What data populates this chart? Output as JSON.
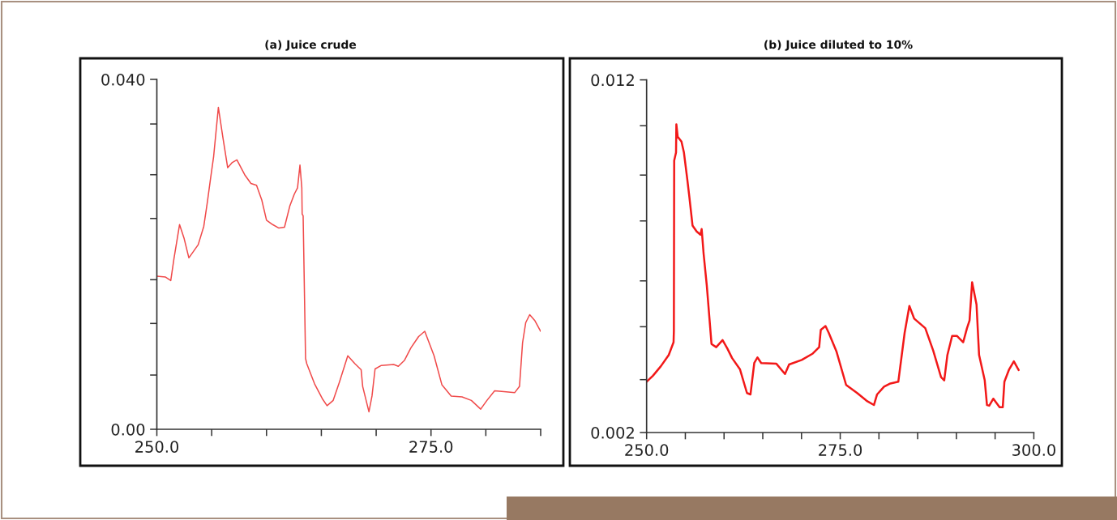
{
  "chart_data": [
    {
      "type": "line",
      "title": "(a) Juice crude",
      "color": "#f04a4a",
      "x": [
        250.0,
        250.79,
        251.27,
        251.56,
        252.07,
        252.49,
        252.92,
        253.77,
        254.28,
        254.61,
        254.9,
        255.18,
        255.61,
        256.03,
        256.46,
        256.88,
        257.3,
        258.01,
        258.58,
        259.09,
        259.57,
        260.0,
        260.56,
        261.13,
        261.64,
        262.12,
        262.54,
        262.83,
        263.05,
        263.22,
        263.25,
        263.34,
        263.56,
        263.67,
        264.38,
        265.09,
        265.52,
        266.08,
        266.65,
        267.41,
        268.06,
        268.63,
        268.77,
        269.34,
        269.62,
        269.9,
        270.47,
        271.6,
        272.02,
        272.59,
        273.16,
        273.87,
        274.43,
        275.28,
        275.99,
        276.84,
        277.83,
        278.68,
        279.53,
        280.1,
        280.8,
        281.65,
        282.64,
        283.07,
        283.35,
        283.64,
        284.0,
        284.48,
        285.0
      ],
      "values": [
        0.0175,
        0.0174,
        0.017,
        0.0195,
        0.0234,
        0.0218,
        0.0196,
        0.0211,
        0.0232,
        0.026,
        0.0287,
        0.0312,
        0.0368,
        0.0333,
        0.0299,
        0.0305,
        0.0308,
        0.0291,
        0.0281,
        0.0279,
        0.0262,
        0.0239,
        0.0234,
        0.023,
        0.0231,
        0.0255,
        0.0269,
        0.0276,
        0.0302,
        0.0276,
        0.0246,
        0.0244,
        0.0081,
        0.0075,
        0.0052,
        0.0035,
        0.0027,
        0.0033,
        0.0054,
        0.0084,
        0.0075,
        0.0068,
        0.0049,
        0.002,
        0.0038,
        0.0069,
        0.0073,
        0.0074,
        0.0072,
        0.0079,
        0.0093,
        0.0106,
        0.0112,
        0.0084,
        0.0051,
        0.0038,
        0.0037,
        0.0033,
        0.0023,
        0.0033,
        0.0044,
        0.0043,
        0.0042,
        0.0049,
        0.0099,
        0.0122,
        0.0131,
        0.0124,
        0.0112
      ],
      "xlim": [
        250,
        285
      ],
      "xticks": [
        {
          "value": 250,
          "label": "250.0"
        },
        {
          "value": 255,
          "label": null
        },
        {
          "value": 260,
          "label": null
        },
        {
          "value": 265,
          "label": null
        },
        {
          "value": 270,
          "label": null
        },
        {
          "value": 275,
          "label": "275.0"
        },
        {
          "value": 280,
          "label": null
        },
        {
          "value": 285,
          "label": null
        }
      ],
      "ylim": [
        0,
        0.04
      ],
      "yticks": [
        {
          "value": 0,
          "label": "0.00"
        },
        {
          "value": 0.0062,
          "label": null
        },
        {
          "value": 0.0121,
          "label": null
        },
        {
          "value": 0.0171,
          "label": null
        },
        {
          "value": 0.0241,
          "label": null
        },
        {
          "value": 0.0291,
          "label": null
        },
        {
          "value": 0.0349,
          "label": null
        },
        {
          "value": 0.04,
          "label": "0.040"
        }
      ]
    },
    {
      "type": "line",
      "title": "(b) Juice diluted to 10%",
      "color": "#f21818",
      "x": [
        250.0,
        250.82,
        251.84,
        252.86,
        253.48,
        253.52,
        253.56,
        253.8,
        253.84,
        254.01,
        254.5,
        254.82,
        255.23,
        255.52,
        255.93,
        256.46,
        256.95,
        257.11,
        257.36,
        257.77,
        258.38,
        258.99,
        259.81,
        260.43,
        261.04,
        262.06,
        262.96,
        263.41,
        263.9,
        264.31,
        264.8,
        266.76,
        267.87,
        268.4,
        270.03,
        271.46,
        272.28,
        272.49,
        273.1,
        273.51,
        274.53,
        275.76,
        277.19,
        278.41,
        279.35,
        279.76,
        280.66,
        281.48,
        282.5,
        283.32,
        283.93,
        284.55,
        285.98,
        287.0,
        288.02,
        288.43,
        288.84,
        289.45,
        290.06,
        290.88,
        291.37,
        291.7,
        292.03,
        292.6,
        292.93,
        293.66,
        293.95,
        294.24,
        294.77,
        295.58,
        295.99,
        296.2,
        296.81,
        297.42,
        298.04
      ],
      "values": [
        0.00344,
        0.00361,
        0.00388,
        0.0042,
        0.00456,
        0.00487,
        0.00971,
        0.00994,
        0.01074,
        0.01039,
        0.01025,
        0.00994,
        0.00922,
        0.00868,
        0.00787,
        0.0077,
        0.00761,
        0.00777,
        0.00707,
        0.00617,
        0.00451,
        0.00442,
        0.00462,
        0.00438,
        0.00411,
        0.00379,
        0.00312,
        0.00308,
        0.00397,
        0.00413,
        0.00397,
        0.00395,
        0.00366,
        0.00393,
        0.00406,
        0.00424,
        0.00442,
        0.00491,
        0.00502,
        0.00483,
        0.00429,
        0.00335,
        0.00312,
        0.0029,
        0.00278,
        0.00308,
        0.0033,
        0.00339,
        0.00344,
        0.00483,
        0.00559,
        0.00523,
        0.00496,
        0.00433,
        0.00357,
        0.00348,
        0.0042,
        0.00474,
        0.00474,
        0.00456,
        0.00496,
        0.00518,
        0.00626,
        0.00563,
        0.0042,
        0.00348,
        0.00278,
        0.00276,
        0.00296,
        0.00272,
        0.00272,
        0.00344,
        0.00379,
        0.00402,
        0.00377
      ],
      "xlim": [
        250,
        300
      ],
      "xticks": [
        {
          "value": 250,
          "label": "250.0"
        },
        {
          "value": 255,
          "label": null
        },
        {
          "value": 260,
          "label": null
        },
        {
          "value": 265,
          "label": null
        },
        {
          "value": 270,
          "label": null
        },
        {
          "value": 275,
          "label": "275.0"
        },
        {
          "value": 280,
          "label": null
        },
        {
          "value": 285,
          "label": null
        },
        {
          "value": 290,
          "label": null
        },
        {
          "value": 295,
          "label": null
        },
        {
          "value": 300,
          "label": "300.0"
        }
      ],
      "ylim": [
        0.002,
        0.012
      ],
      "yticks": [
        {
          "value": 0.002,
          "label": "0.002"
        },
        {
          "value": 0.0035,
          "label": null
        },
        {
          "value": 0.005,
          "label": null
        },
        {
          "value": 0.0063,
          "label": null
        },
        {
          "value": 0.008,
          "label": null
        },
        {
          "value": 0.0093,
          "label": null
        },
        {
          "value": 0.0107,
          "label": null
        },
        {
          "value": 0.012,
          "label": "0.012"
        }
      ]
    }
  ]
}
